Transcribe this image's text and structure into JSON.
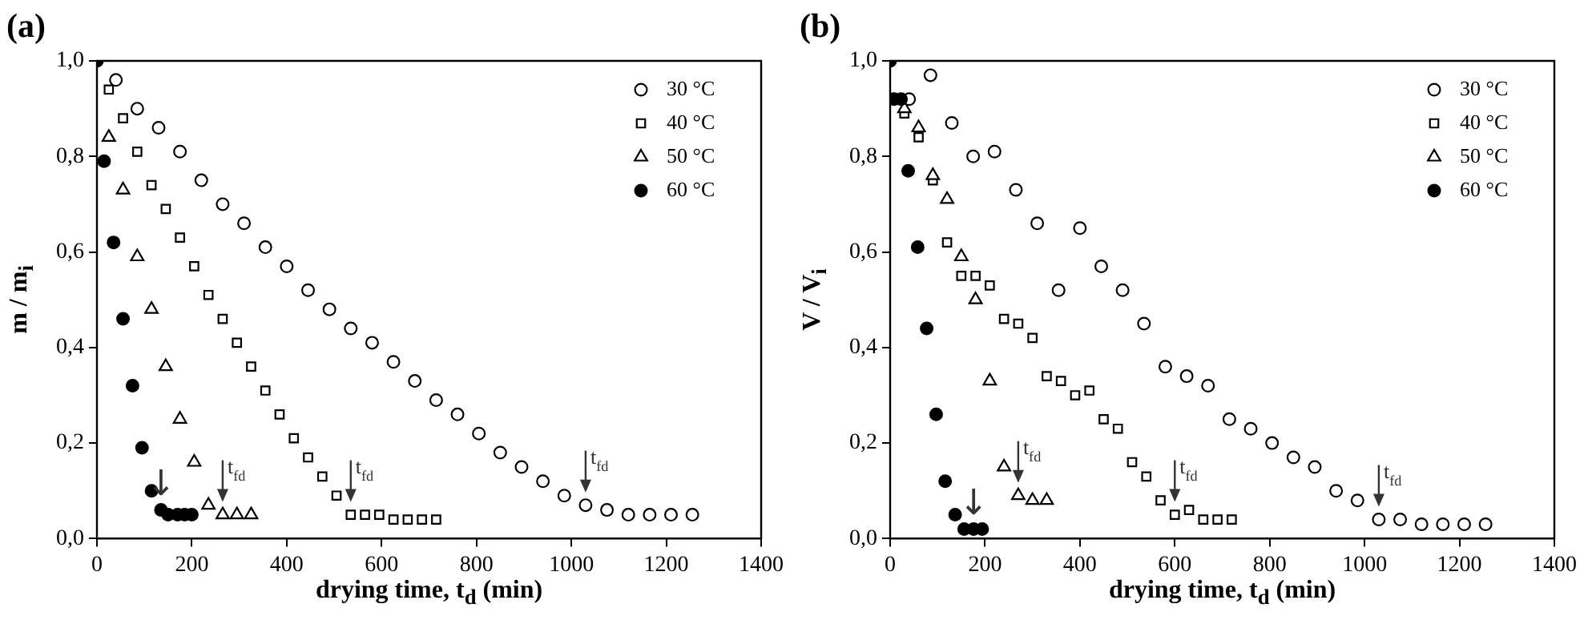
{
  "chart_data": [
    {
      "type": "scatter",
      "title": "(a)",
      "xlabel": "drying time, t$_{d}$ (min)",
      "ylabel": "m / m$_{i}$",
      "xlim": [
        0,
        1400
      ],
      "xticks": [
        0,
        200,
        400,
        600,
        800,
        1000,
        1200,
        1400
      ],
      "ylim": [
        0,
        1
      ],
      "yticks": [
        {
          "value": 0,
          "label": "0,0"
        },
        {
          "value": 0.2,
          "label": "0,2"
        },
        {
          "value": 0.4,
          "label": "0,4"
        },
        {
          "value": 0.6,
          "label": "0,6"
        },
        {
          "value": 0.8,
          "label": "0,8"
        },
        {
          "value": 1,
          "label": "1,0"
        }
      ],
      "grid": false,
      "legend": "top right",
      "series": [
        {
          "name": "30 °C",
          "color": "#000000",
          "marker": "circle",
          "x": [
            40,
            85,
            130,
            175,
            220,
            265,
            310,
            355,
            400,
            445,
            490,
            535,
            580,
            625,
            670,
            715,
            760,
            805,
            850,
            895,
            940,
            985,
            1030,
            1075,
            1120,
            1165,
            1210,
            1255
          ],
          "values": [
            0.96,
            0.9,
            0.86,
            0.81,
            0.75,
            0.7,
            0.66,
            0.61,
            0.57,
            0.52,
            0.48,
            0.44,
            0.41,
            0.37,
            0.33,
            0.29,
            0.26,
            0.22,
            0.18,
            0.15,
            0.12,
            0.09,
            0.07,
            0.06,
            0.05,
            0.05,
            0.05,
            0.05
          ]
        },
        {
          "name": "40 °C",
          "color": "#000000",
          "marker": "square",
          "x": [
            25,
            55,
            85,
            115,
            145,
            175,
            205,
            235,
            265,
            295,
            325,
            355,
            385,
            415,
            445,
            475,
            505,
            535,
            565,
            595,
            625,
            655,
            685,
            715
          ],
          "values": [
            0.94,
            0.88,
            0.81,
            0.74,
            0.69,
            0.63,
            0.57,
            0.51,
            0.46,
            0.41,
            0.36,
            0.31,
            0.26,
            0.21,
            0.17,
            0.13,
            0.09,
            0.05,
            0.05,
            0.05,
            0.04,
            0.04,
            0.04,
            0.04
          ]
        },
        {
          "name": "50 °C",
          "color": "#000000",
          "marker": "triangle",
          "x": [
            25,
            55,
            85,
            115,
            145,
            175,
            205,
            235,
            265,
            295,
            325
          ],
          "values": [
            0.84,
            0.73,
            0.59,
            0.48,
            0.36,
            0.25,
            0.16,
            0.07,
            0.05,
            0.05,
            0.05
          ]
        },
        {
          "name": "60 °C",
          "color": "#000000",
          "marker": "circle",
          "x": [
            0,
            15,
            35,
            55,
            75,
            95,
            115,
            135,
            150,
            170,
            185,
            200
          ],
          "values": [
            1,
            0.79,
            0.62,
            0.46,
            0.32,
            0.19,
            0.1,
            0.06,
            0.05,
            0.05,
            0.05,
            0.05
          ]
        }
      ],
      "annotations": [
        {
          "text": "↓",
          "x": 135,
          "y": 0.06
        },
        {
          "text": "t$_{fd}$",
          "x": 265,
          "y": 0.05
        },
        {
          "text": "t$_{fd}$",
          "x": 535,
          "y": 0.05
        },
        {
          "text": "t$_{fd}$",
          "x": 1030,
          "y": 0.07
        }
      ]
    },
    {
      "type": "scatter",
      "title": "(b)",
      "xlabel": "drying time, t$_{d}$ (min)",
      "ylabel": "V / V$_{i}$",
      "xlim": [
        0,
        1400
      ],
      "xticks": [
        0,
        200,
        400,
        600,
        800,
        1000,
        1200,
        1400
      ],
      "ylim": [
        0,
        1
      ],
      "yticks": [
        {
          "value": 0,
          "label": "0,0"
        },
        {
          "value": 0.2,
          "label": "0,2"
        },
        {
          "value": 0.4,
          "label": "0,4"
        },
        {
          "value": 0.6,
          "label": "0,6"
        },
        {
          "value": 0.8,
          "label": "0,8"
        },
        {
          "value": 1,
          "label": "1,0"
        }
      ],
      "grid": false,
      "legend": "top right",
      "series": [
        {
          "name": "30 °C",
          "color": "#000000",
          "marker": "circle",
          "x": [
            40,
            85,
            130,
            175,
            220,
            265,
            310,
            355,
            400,
            445,
            490,
            535,
            580,
            625,
            670,
            715,
            760,
            805,
            850,
            895,
            940,
            985,
            1030,
            1075,
            1120,
            1165,
            1210,
            1255
          ],
          "values": [
            0.92,
            0.97,
            0.87,
            0.8,
            0.81,
            0.73,
            0.66,
            0.52,
            0.65,
            0.57,
            0.52,
            0.45,
            0.36,
            0.34,
            0.32,
            0.25,
            0.23,
            0.2,
            0.17,
            0.15,
            0.1,
            0.08,
            0.04,
            0.04,
            0.03,
            0.03,
            0.03,
            0.03
          ]
        },
        {
          "name": "40 °C",
          "color": "#000000",
          "marker": "square",
          "x": [
            30,
            60,
            90,
            120,
            150,
            180,
            210,
            240,
            270,
            300,
            330,
            360,
            390,
            420,
            450,
            480,
            510,
            540,
            570,
            600,
            630,
            660,
            690,
            720
          ],
          "values": [
            0.89,
            0.84,
            0.75,
            0.62,
            0.55,
            0.55,
            0.53,
            0.46,
            0.45,
            0.42,
            0.34,
            0.33,
            0.3,
            0.31,
            0.25,
            0.23,
            0.16,
            0.13,
            0.08,
            0.05,
            0.06,
            0.04,
            0.04,
            0.04
          ]
        },
        {
          "name": "50 °C",
          "color": "#000000",
          "marker": "triangle",
          "x": [
            30,
            60,
            90,
            120,
            150,
            180,
            210,
            240,
            270,
            300,
            330
          ],
          "values": [
            0.9,
            0.86,
            0.76,
            0.71,
            0.59,
            0.5,
            0.33,
            0.15,
            0.09,
            0.08,
            0.08
          ]
        },
        {
          "name": "60 °C",
          "color": "#000000",
          "marker": "circle",
          "x": [
            0,
            8,
            23,
            38,
            58,
            77,
            97,
            116,
            137,
            156,
            176,
            194
          ],
          "values": [
            1,
            0.92,
            0.92,
            0.77,
            0.61,
            0.44,
            0.26,
            0.12,
            0.05,
            0.02,
            0.02,
            0.02
          ]
        }
      ],
      "annotations": [
        {
          "text": "↓",
          "x": 176,
          "y": 0.02
        },
        {
          "text": "t$_{fd}$",
          "x": 270,
          "y": 0.09
        },
        {
          "text": "t$_{fd}$",
          "x": 600,
          "y": 0.05
        },
        {
          "text": "t$_{fd}$",
          "x": 1030,
          "y": 0.04
        }
      ]
    }
  ]
}
